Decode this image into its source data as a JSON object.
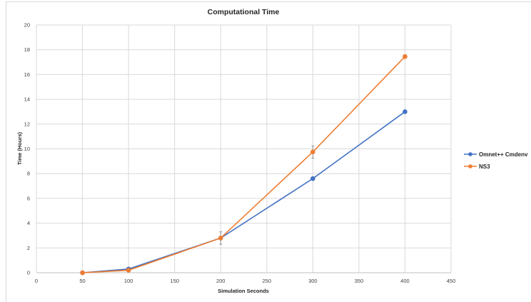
{
  "chart_data": {
    "type": "line",
    "title": "Computational Time",
    "xlabel": "Simulation Seconds",
    "ylabel": "Time (Hours)",
    "xlim": [
      0,
      450
    ],
    "ylim": [
      0,
      20
    ],
    "xticks": [
      "0",
      "50",
      "100",
      "150",
      "200",
      "250",
      "300",
      "350",
      "400",
      "450"
    ],
    "yticks": [
      "0",
      "2",
      "4",
      "6",
      "8",
      "10",
      "12",
      "14",
      "16",
      "18",
      "20"
    ],
    "grid": true,
    "legend_position": "right",
    "series": [
      {
        "name": "Omnet++ Cmdenv",
        "color": "#4472c4",
        "x": [
          50,
          100,
          200,
          300,
          400
        ],
        "y": [
          0.0,
          0.3,
          2.8,
          7.6,
          13.0
        ]
      },
      {
        "name": "NS3",
        "color": "#ed7d31",
        "x": [
          50,
          100,
          200,
          300,
          400
        ],
        "y": [
          0.0,
          0.2,
          2.8,
          9.75,
          17.45
        ],
        "error": [
          0.05,
          0.05,
          0.5,
          0.5,
          0.15
        ]
      }
    ]
  }
}
